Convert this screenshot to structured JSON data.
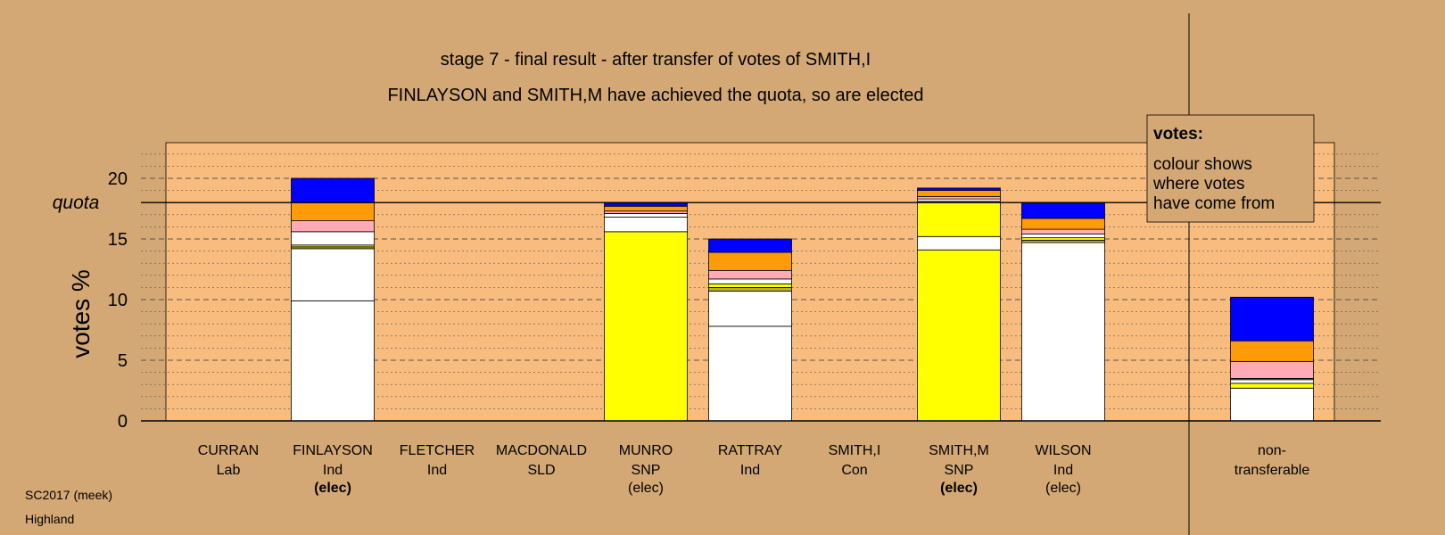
{
  "title_line1": "stage 7 - final result - after transfer of votes of SMITH,I",
  "title_line2": "FINLAYSON and SMITH,M have achieved the quota, so are elected",
  "footer": {
    "line1": "SC2017 (meek)",
    "line2": "Highland"
  },
  "legend": {
    "heading": "votes:",
    "lines": [
      "colour shows",
      "where votes",
      "have come from"
    ]
  },
  "quota_label": "quota",
  "colors": {
    "background": "#D4A874",
    "plot_area": "#F8BD7E",
    "white": "#FFFFFF",
    "yellow": "#FFFF00",
    "pink": "#FFAAB4",
    "orange": "#FF9A08",
    "blue": "#0000FF",
    "olive": "#B8B030"
  },
  "chart_data": {
    "type": "bar",
    "stacked": true,
    "ylabel": "votes %",
    "ylim": [
      0,
      23
    ],
    "yticks": [
      0,
      5,
      10,
      15,
      20
    ],
    "quota": 18,
    "grid": true,
    "legend_position": "top-right",
    "candidates": [
      {
        "name": "CURRAN",
        "party": "Lab",
        "status": "",
        "status_bold": false,
        "segments": []
      },
      {
        "name": "FINLAYSON",
        "party": "Ind",
        "status": "(elec)",
        "status_bold": true,
        "segments": [
          {
            "value": 9.9,
            "color": "white"
          },
          {
            "value": 4.3,
            "color": "white"
          },
          {
            "value": 0.15,
            "color": "olive"
          },
          {
            "value": 0.15,
            "color": "yellow"
          },
          {
            "value": 1.1,
            "color": "white"
          },
          {
            "value": 0.9,
            "color": "pink"
          },
          {
            "value": 1.5,
            "color": "orange"
          },
          {
            "value": 2.0,
            "color": "blue"
          }
        ]
      },
      {
        "name": "FLETCHER",
        "party": "Ind",
        "status": "",
        "status_bold": false,
        "segments": []
      },
      {
        "name": "MACDONALD",
        "party": "SLD",
        "status": "",
        "status_bold": false,
        "segments": []
      },
      {
        "name": "MUNRO",
        "party": "SNP",
        "status": "(elec)",
        "status_bold": false,
        "segments": [
          {
            "value": 15.6,
            "color": "yellow"
          },
          {
            "value": 1.2,
            "color": "white"
          },
          {
            "value": 0.3,
            "color": "white"
          },
          {
            "value": 0.2,
            "color": "pink"
          },
          {
            "value": 0.4,
            "color": "orange"
          },
          {
            "value": 0.3,
            "color": "blue"
          }
        ]
      },
      {
        "name": "RATTRAY",
        "party": "Ind",
        "status": "",
        "status_bold": false,
        "segments": [
          {
            "value": 7.8,
            "color": "white"
          },
          {
            "value": 2.9,
            "color": "white"
          },
          {
            "value": 0.3,
            "color": "olive"
          },
          {
            "value": 0.3,
            "color": "yellow"
          },
          {
            "value": 0.4,
            "color": "white"
          },
          {
            "value": 0.7,
            "color": "pink"
          },
          {
            "value": 1.5,
            "color": "orange"
          },
          {
            "value": 1.1,
            "color": "blue"
          }
        ]
      },
      {
        "name": "SMITH,I",
        "party": "Con",
        "status": "",
        "status_bold": false,
        "segments": []
      },
      {
        "name": "SMITH,M",
        "party": "SNP",
        "status": "(elec)",
        "status_bold": true,
        "segments": [
          {
            "value": 14.1,
            "color": "yellow"
          },
          {
            "value": 1.1,
            "color": "white"
          },
          {
            "value": 2.9,
            "color": "yellow"
          },
          {
            "value": 0.2,
            "color": "white"
          },
          {
            "value": 0.2,
            "color": "pink"
          },
          {
            "value": 0.5,
            "color": "orange"
          },
          {
            "value": 0.2,
            "color": "blue"
          }
        ]
      },
      {
        "name": "WILSON",
        "party": "Ind",
        "status": "(elec)",
        "status_bold": false,
        "segments": [
          {
            "value": 14.7,
            "color": "white"
          },
          {
            "value": 0.2,
            "color": "olive"
          },
          {
            "value": 0.2,
            "color": "yellow"
          },
          {
            "value": 0.3,
            "color": "white"
          },
          {
            "value": 0.4,
            "color": "pink"
          },
          {
            "value": 0.9,
            "color": "orange"
          },
          {
            "value": 1.3,
            "color": "blue"
          }
        ]
      }
    ],
    "nontransferable": {
      "name": "non-",
      "party": "transferable",
      "segments": [
        {
          "value": 2.7,
          "color": "white"
        },
        {
          "value": 0.4,
          "color": "yellow"
        },
        {
          "value": 0.3,
          "color": "white"
        },
        {
          "value": 0.1,
          "color": "olive"
        },
        {
          "value": 1.4,
          "color": "pink"
        },
        {
          "value": 1.7,
          "color": "orange"
        },
        {
          "value": 3.6,
          "color": "blue"
        }
      ]
    }
  }
}
